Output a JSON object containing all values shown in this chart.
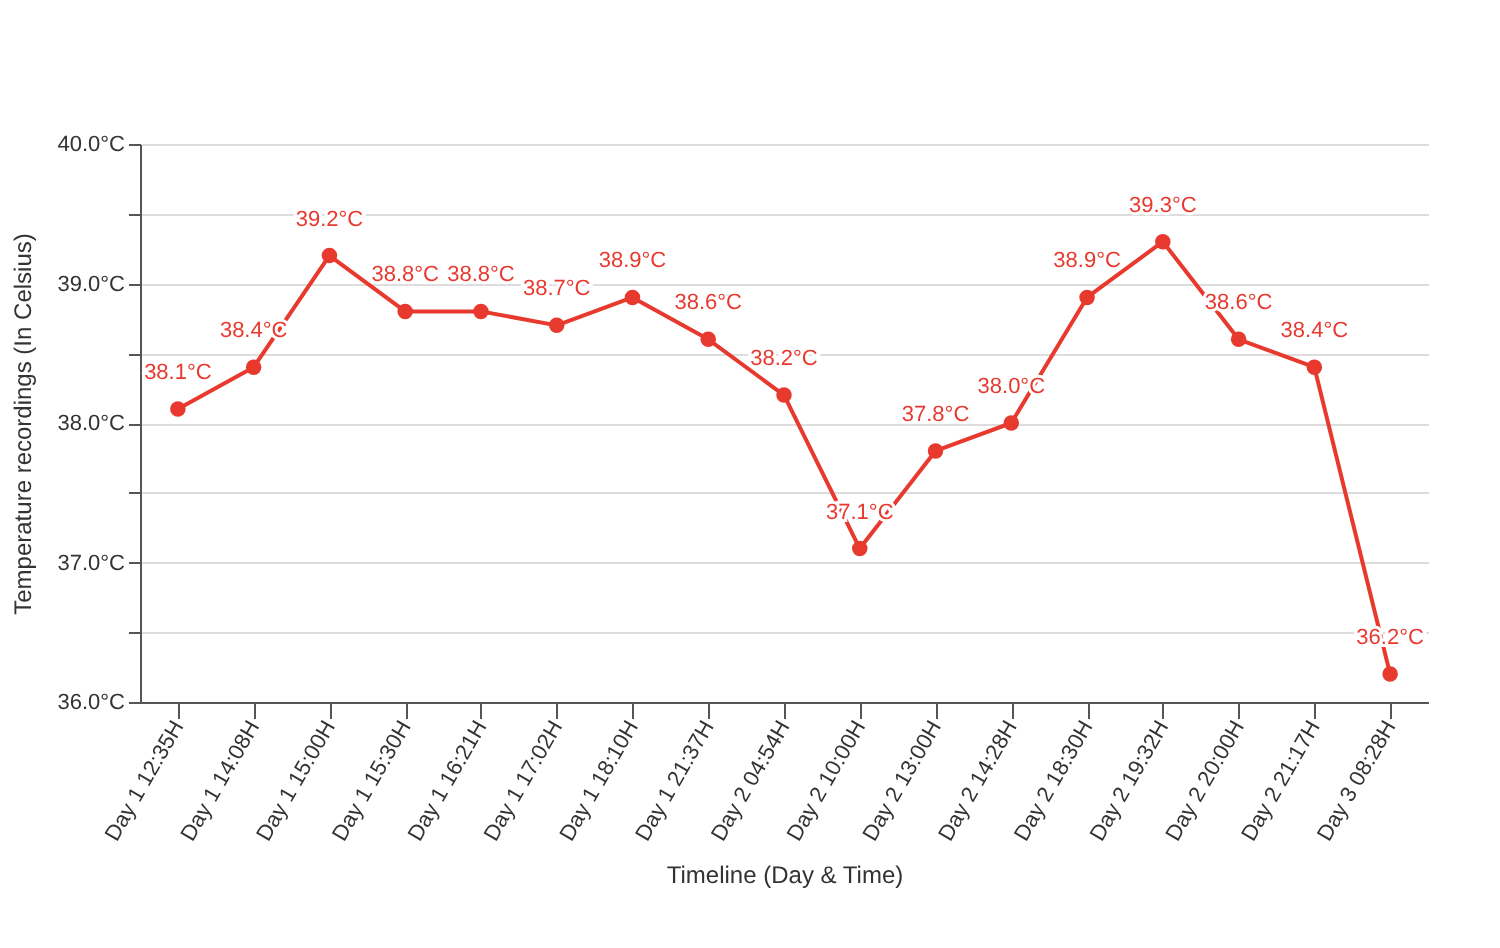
{
  "chart_data": {
    "type": "line",
    "xlabel": "Timeline (Day & Time)",
    "ylabel": "Temperature recordings (In Celsius)",
    "categories": [
      "Day 1 12:35H",
      "Day 1 14:08H",
      "Day 1 15:00H",
      "Day 1 15:30H",
      "Day 1 16:21H",
      "Day 1 17:02H",
      "Day 1 18:10H",
      "Day 1 21:37H",
      "Day 2 04:54H",
      "Day 2 10:00H",
      "Day 2 13:00H",
      "Day 2 14:28H",
      "Day 2 18:30H",
      "Day 2 19:32H",
      "Day 2 20:00H",
      "Day 2 21:17H",
      "Day 3 08:28H"
    ],
    "series": [
      {
        "color": "#e8392f",
        "values": [
          38.1,
          38.4,
          39.2,
          38.8,
          38.8,
          38.7,
          38.9,
          38.6,
          38.2,
          37.1,
          37.8,
          38.0,
          38.9,
          39.3,
          38.6,
          38.4,
          36.2
        ],
        "value_labels": [
          "38.1°C",
          "38.4°C",
          "39.2°C",
          "38.8°C",
          "38.8°C",
          "38.7°C",
          "38.9°C",
          "38.6°C",
          "38.2°C",
          "37.1°C",
          "37.8°C",
          "38.0°C",
          "38.9°C",
          "39.3°C",
          "38.6°C",
          "38.4°C",
          "36.2°C"
        ]
      }
    ],
    "ylim": [
      36,
      40
    ],
    "yticks": [
      {
        "value": 36,
        "label": "36.0°C"
      },
      {
        "value": 36.5,
        "label": null
      },
      {
        "value": 37,
        "label": "37.0°C"
      },
      {
        "value": 37.5,
        "label": null
      },
      {
        "value": 38,
        "label": "38.0°C"
      },
      {
        "value": 38.5,
        "label": null
      },
      {
        "value": 39,
        "label": "39.0°C"
      },
      {
        "value": 39.5,
        "label": null
      },
      {
        "value": 40,
        "label": "40.0°C"
      }
    ],
    "grid": "y",
    "marker": "circle",
    "line_style": "solid"
  }
}
